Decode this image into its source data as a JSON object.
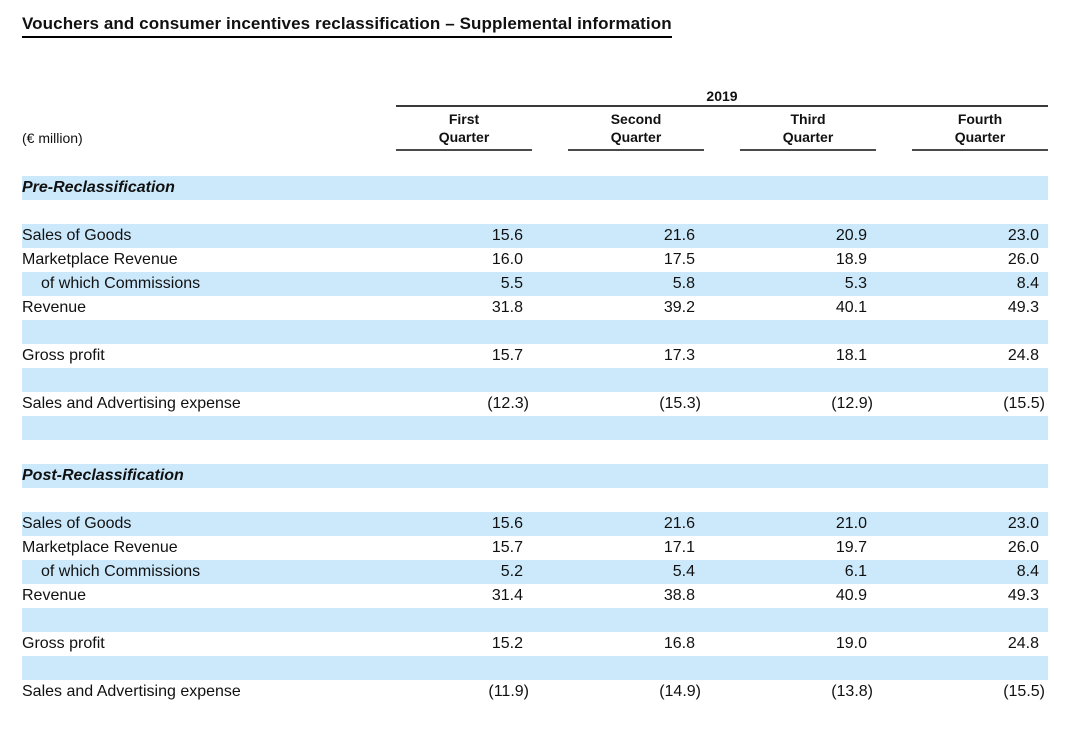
{
  "title": "Vouchers and consumer incentives reclassification – Supplemental information",
  "unit_label": "(€ million)",
  "colors": {
    "band_blue": "#cbe9fb",
    "text": "#111111",
    "rule_dark": "#4a4a4a",
    "title_underline": "#000000"
  },
  "table": {
    "year": "2019",
    "columns": [
      "First\nQuarter",
      "Second\nQuarter",
      "Third\nQuarter",
      "Fourth\nQuarter"
    ],
    "sections": [
      {
        "header": "Pre-Reclassification",
        "rows": [
          {
            "label": "",
            "indent": false,
            "values": [
              "",
              "",
              "",
              ""
            ]
          },
          {
            "label": "Sales of Goods",
            "indent": false,
            "values": [
              "15.6",
              "21.6",
              "20.9",
              "23.0"
            ]
          },
          {
            "label": "Marketplace Revenue",
            "indent": false,
            "values": [
              "16.0",
              "17.5",
              "18.9",
              "26.0"
            ]
          },
          {
            "label": "of which Commissions",
            "indent": true,
            "values": [
              "5.5",
              "5.8",
              "5.3",
              "8.4"
            ]
          },
          {
            "label": "Revenue",
            "indent": false,
            "values": [
              "31.8",
              "39.2",
              "40.1",
              "49.3"
            ]
          },
          {
            "label": "",
            "indent": false,
            "values": [
              "",
              "",
              "",
              ""
            ]
          },
          {
            "label": "Gross profit",
            "indent": false,
            "values": [
              "15.7",
              "17.3",
              "18.1",
              "24.8"
            ]
          },
          {
            "label": "",
            "indent": false,
            "values": [
              "",
              "",
              "",
              ""
            ]
          },
          {
            "label": "Sales and Advertising expense",
            "indent": false,
            "values": [
              "(12.3)",
              "(15.3)",
              "(12.9)",
              "(15.5)"
            ]
          },
          {
            "label": "",
            "indent": false,
            "values": [
              "",
              "",
              "",
              ""
            ]
          }
        ]
      },
      {
        "header": "Post-Reclassification",
        "rows": [
          {
            "label": "",
            "indent": false,
            "values": [
              "",
              "",
              "",
              ""
            ]
          },
          {
            "label": "Sales of Goods",
            "indent": false,
            "values": [
              "15.6",
              "21.6",
              "21.0",
              "23.0"
            ]
          },
          {
            "label": "Marketplace Revenue",
            "indent": false,
            "values": [
              "15.7",
              "17.1",
              "19.7",
              "26.0"
            ]
          },
          {
            "label": "of which Commissions",
            "indent": true,
            "values": [
              "5.2",
              "5.4",
              "6.1",
              "8.4"
            ]
          },
          {
            "label": "Revenue",
            "indent": false,
            "values": [
              "31.4",
              "38.8",
              "40.9",
              "49.3"
            ]
          },
          {
            "label": "",
            "indent": false,
            "values": [
              "",
              "",
              "",
              ""
            ]
          },
          {
            "label": "Gross profit",
            "indent": false,
            "values": [
              "15.2",
              "16.8",
              "19.0",
              "24.8"
            ]
          },
          {
            "label": "",
            "indent": false,
            "values": [
              "",
              "",
              "",
              ""
            ]
          },
          {
            "label": "Sales and Advertising expense",
            "indent": false,
            "values": [
              "(11.9)",
              "(14.9)",
              "(13.8)",
              "(15.5)"
            ]
          }
        ]
      }
    ]
  }
}
